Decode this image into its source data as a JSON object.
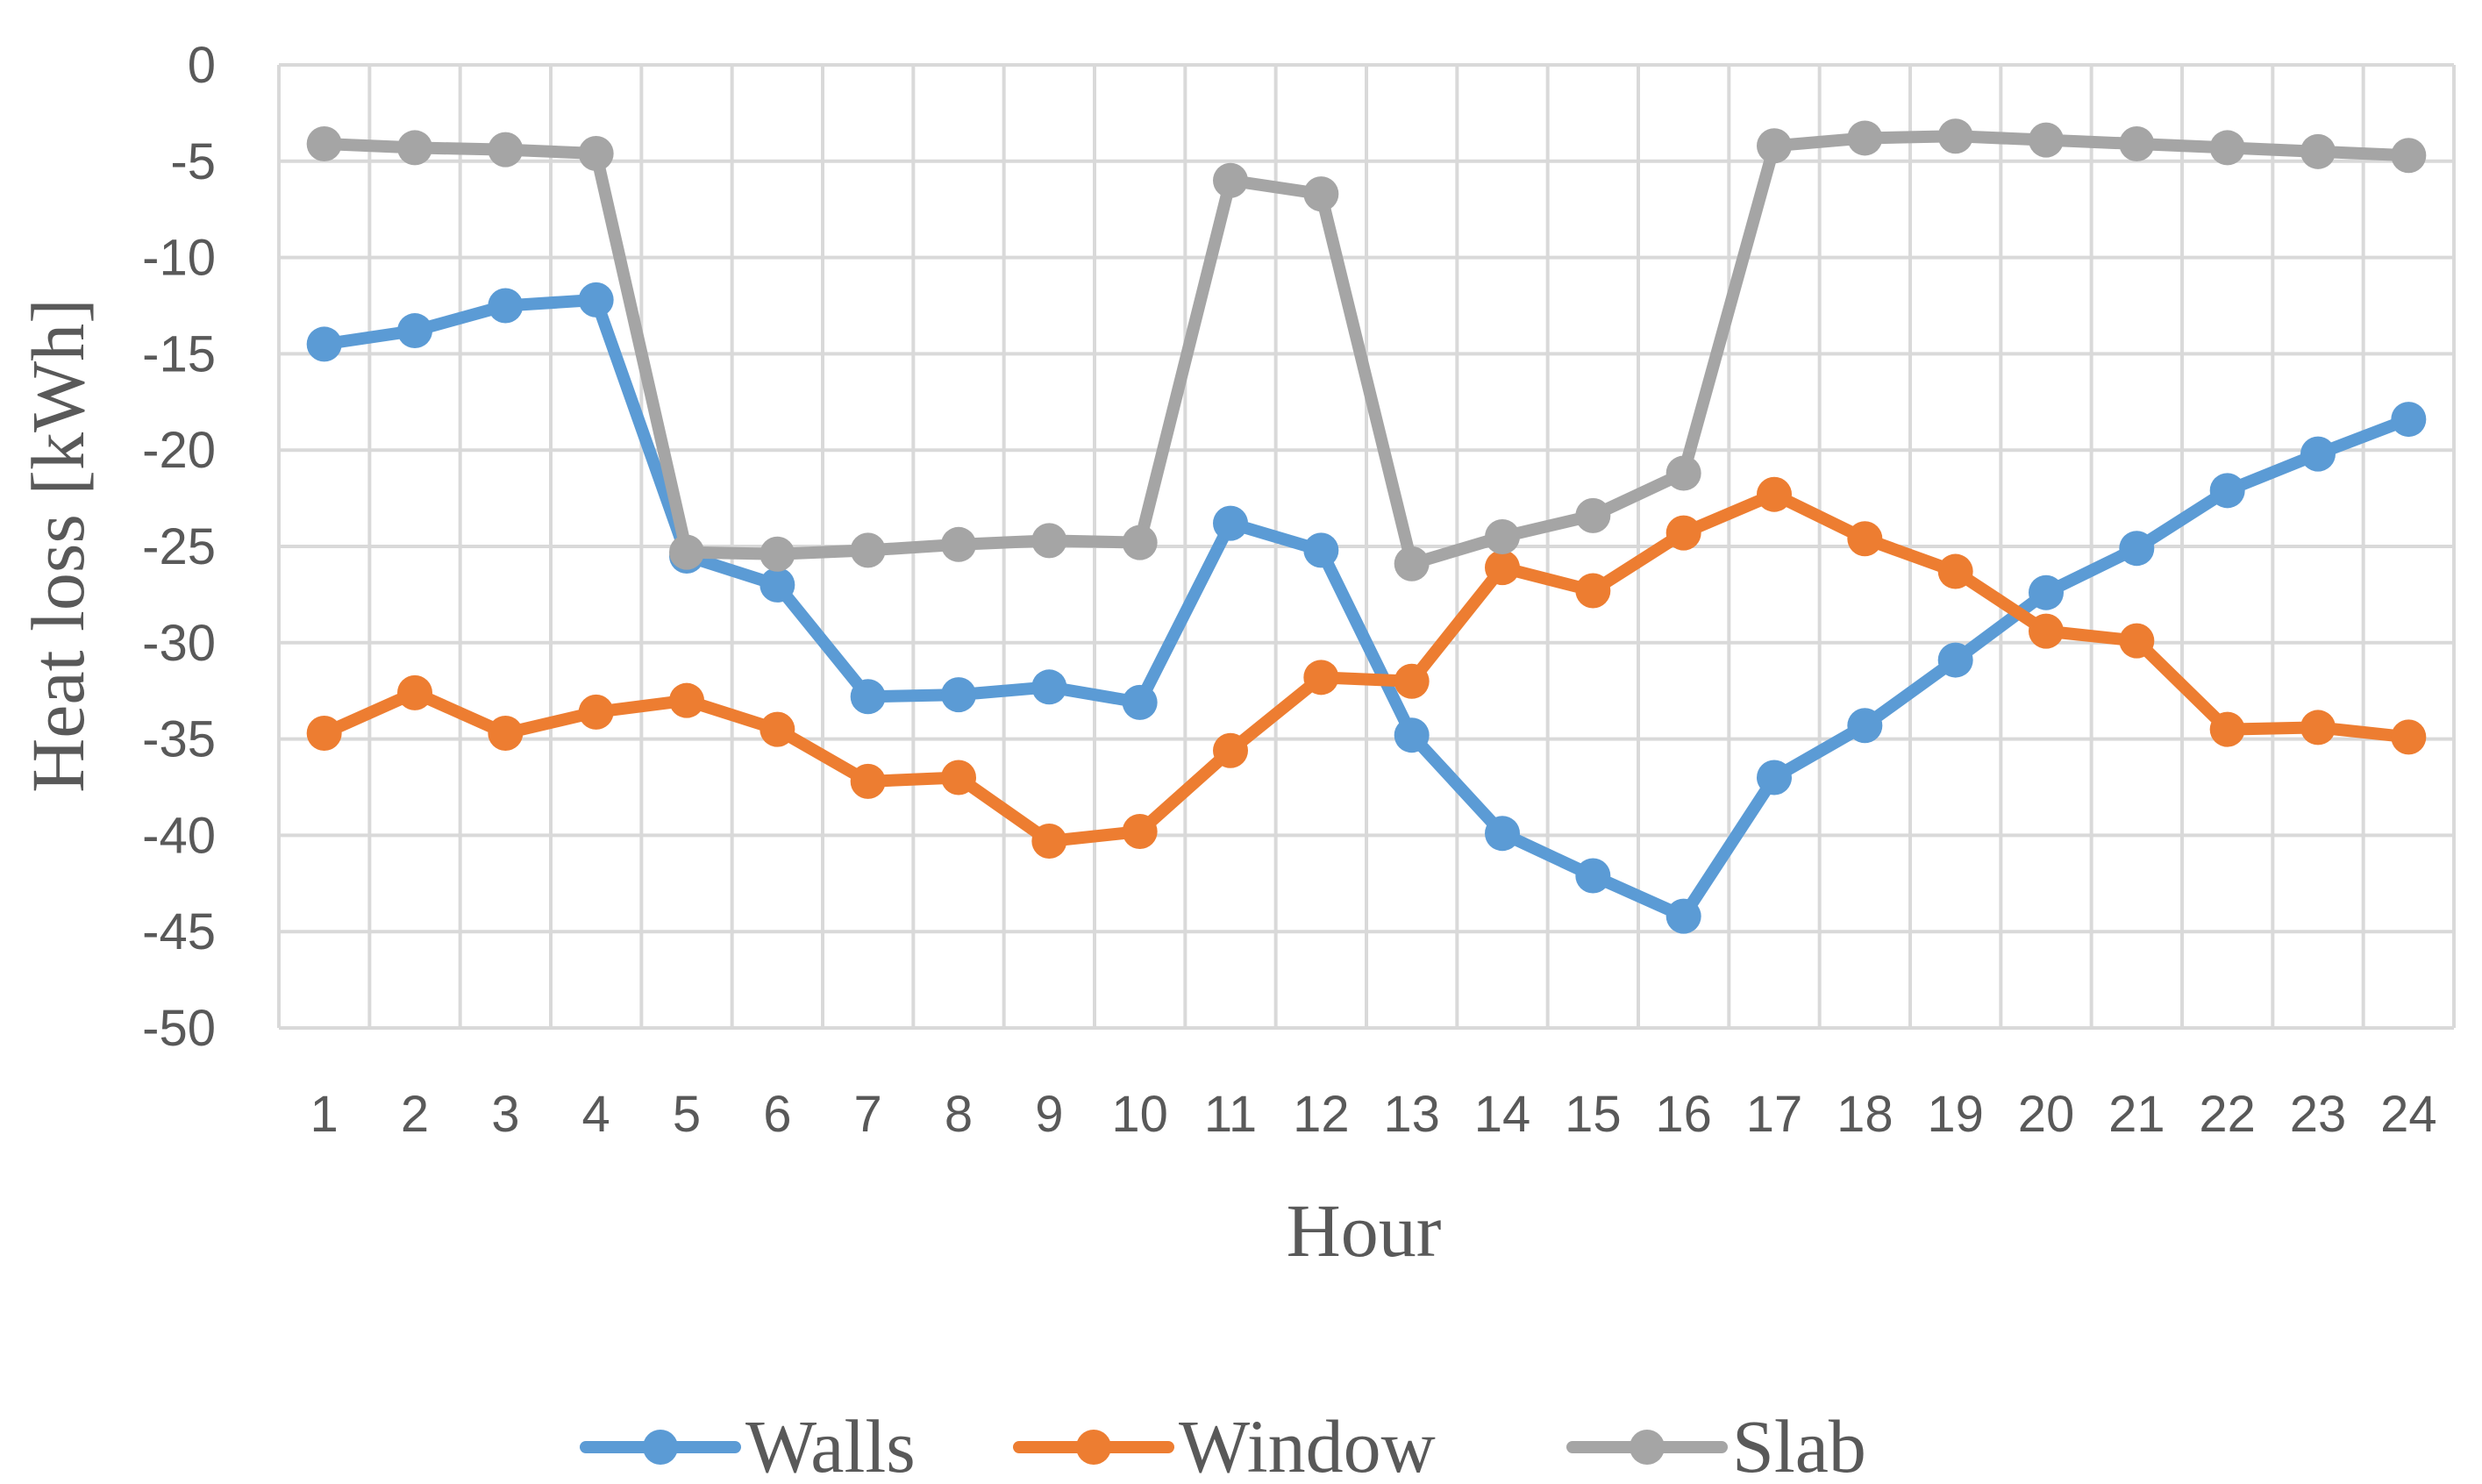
{
  "chart_data": {
    "type": "line",
    "title": "",
    "xlabel": "Hour",
    "ylabel": "Heat loss [kWh]",
    "categories": [
      "1",
      "2",
      "3",
      "4",
      "5",
      "6",
      "7",
      "8",
      "9",
      "10",
      "11",
      "12",
      "13",
      "14",
      "15",
      "16",
      "17",
      "18",
      "19",
      "20",
      "21",
      "22",
      "23",
      "24"
    ],
    "ylim": [
      -50,
      0
    ],
    "yticks": [
      0,
      -5,
      -10,
      -15,
      -20,
      -25,
      -30,
      -35,
      -40,
      -45,
      -50
    ],
    "ytick_labels": [
      "0",
      "-5",
      "-10",
      "-15",
      "-20",
      "-25",
      "-30",
      "-35",
      "-40",
      "-45",
      "-50"
    ],
    "grid": true,
    "legend_position": "bottom",
    "series": [
      {
        "name": "Walls",
        "color": "#5b9bd5",
        "values": [
          -14.5,
          -13.8,
          -12.5,
          -12.2,
          -25.5,
          -27.0,
          -32.8,
          -32.7,
          -32.3,
          -33.1,
          -23.8,
          -25.2,
          -34.8,
          -39.9,
          -42.1,
          -44.2,
          -37.0,
          -34.3,
          -30.9,
          -27.4,
          -25.1,
          -22.1,
          -20.2,
          -18.4
        ]
      },
      {
        "name": "Window",
        "color": "#ed7d31",
        "values": [
          -34.7,
          -32.6,
          -34.7,
          -33.6,
          -33.0,
          -34.5,
          -37.2,
          -37.0,
          -40.3,
          -39.8,
          -35.6,
          -31.8,
          -32.0,
          -26.1,
          -27.3,
          -24.3,
          -22.3,
          -24.6,
          -26.3,
          -29.4,
          -29.9,
          -34.5,
          -34.4,
          -34.9
        ]
      },
      {
        "name": "Slab",
        "color": "#a5a5a5",
        "values": [
          -4.1,
          -4.3,
          -4.4,
          -4.6,
          -25.3,
          -25.4,
          -25.2,
          -24.9,
          -24.7,
          -24.8,
          -6.0,
          -6.7,
          -25.9,
          -24.5,
          -23.4,
          -21.2,
          -4.2,
          -3.8,
          -3.7,
          -3.9,
          -4.1,
          -4.3,
          -4.5,
          -4.7
        ]
      }
    ]
  }
}
